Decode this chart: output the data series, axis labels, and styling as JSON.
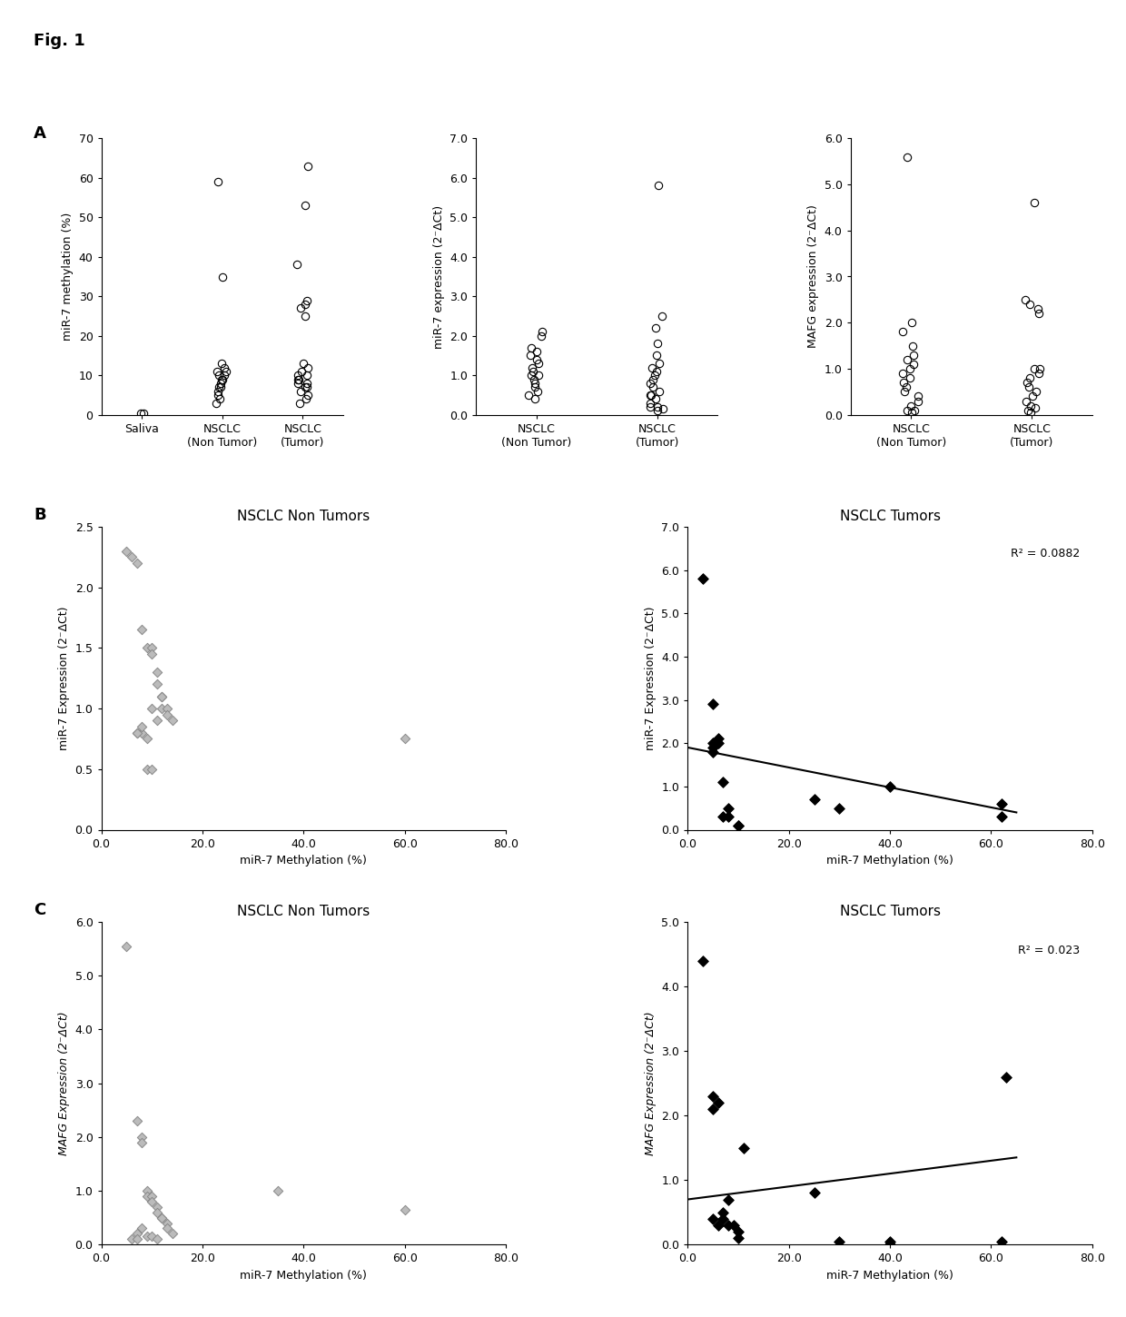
{
  "fig_label": "Fig. 1",
  "panel_A": {
    "plot1": {
      "ylabel": "miR-7 methylation (%)",
      "ylim": [
        0,
        70
      ],
      "yticks": [
        0,
        10,
        20,
        30,
        40,
        50,
        60,
        70
      ],
      "yticklabels": [
        "0",
        "10",
        "20",
        "30",
        "40",
        "50",
        "60",
        "70"
      ],
      "categories": [
        "Saliva",
        "NSCLC\n(Non Tumor)",
        "NSCLC\n(Tumor)"
      ],
      "data_saliva": [
        0.3,
        0.5
      ],
      "data_nontumor": [
        3,
        4,
        5,
        6,
        7,
        7,
        8,
        9,
        9,
        10,
        10,
        11,
        11,
        12,
        13,
        35,
        59
      ],
      "data_tumor": [
        3,
        4,
        5,
        6,
        7,
        7,
        8,
        8,
        9,
        9,
        10,
        10,
        11,
        12,
        13,
        25,
        27,
        28,
        29,
        38,
        53,
        63
      ]
    },
    "plot2": {
      "ylabel": "miR-7 expression (2⁻ΔCt)",
      "ylim": [
        0,
        7.0
      ],
      "yticks": [
        0.0,
        1.0,
        2.0,
        3.0,
        4.0,
        5.0,
        6.0,
        7.0
      ],
      "yticklabels": [
        "0.0",
        "1.0",
        "2.0",
        "3.0",
        "4.0",
        "5.0",
        "6.0",
        "7.0"
      ],
      "categories": [
        "NSCLC\n(Non Tumor)",
        "NSCLC\n(Tumor)"
      ],
      "data_nontumor": [
        0.4,
        0.5,
        0.6,
        0.7,
        0.8,
        0.9,
        1.0,
        1.0,
        1.1,
        1.2,
        1.3,
        1.4,
        1.5,
        1.6,
        1.7,
        2.0,
        2.1
      ],
      "data_tumor": [
        0.1,
        0.15,
        0.2,
        0.2,
        0.3,
        0.4,
        0.5,
        0.5,
        0.6,
        0.7,
        0.8,
        0.9,
        1.0,
        1.1,
        1.2,
        1.3,
        1.5,
        1.8,
        2.2,
        2.5,
        5.8
      ]
    },
    "plot3": {
      "ylabel": "MAFG expression (2⁻ΔCt)",
      "ylim": [
        0,
        6.0
      ],
      "yticks": [
        0.0,
        1.0,
        2.0,
        3.0,
        4.0,
        5.0,
        6.0
      ],
      "yticklabels": [
        "0.0",
        "1.0",
        "2.0",
        "3.0",
        "4.0",
        "5.0",
        "6.0"
      ],
      "categories": [
        "NSCLC\n(Non Tumor)",
        "NSCLC\n(Tumor)"
      ],
      "data_nontumor": [
        0.05,
        0.1,
        0.1,
        0.2,
        0.3,
        0.4,
        0.5,
        0.6,
        0.7,
        0.8,
        0.9,
        1.0,
        1.1,
        1.2,
        1.3,
        1.5,
        1.8,
        2.0,
        5.6
      ],
      "data_tumor": [
        0.05,
        0.1,
        0.15,
        0.2,
        0.3,
        0.4,
        0.5,
        0.6,
        0.7,
        0.8,
        0.9,
        1.0,
        1.0,
        2.2,
        2.3,
        2.4,
        2.5,
        4.6
      ]
    }
  },
  "panel_B": {
    "left": {
      "title": "NSCLC Non Tumors",
      "xlabel": "miR-7 Methylation (%)",
      "ylabel": "miR-7 Expression (2⁻ΔCt)",
      "xlim": [
        0,
        80
      ],
      "ylim": [
        0,
        2.5
      ],
      "xticks": [
        0.0,
        20.0,
        40.0,
        60.0,
        80.0
      ],
      "xticklabels": [
        "0.0",
        "20.0",
        "40.0",
        "60.0",
        "80.0"
      ],
      "yticks": [
        0.0,
        0.5,
        1.0,
        1.5,
        2.0,
        2.5
      ],
      "yticklabels": [
        "0.0",
        "0.5",
        "1.0",
        "1.5",
        "2.0",
        "2.5"
      ],
      "x": [
        5,
        6,
        7,
        8,
        9,
        10,
        10,
        11,
        11,
        12,
        12,
        13,
        13,
        14,
        7,
        8,
        9,
        10,
        11,
        12,
        7,
        8,
        9,
        60,
        10
      ],
      "y": [
        2.3,
        2.25,
        2.2,
        1.65,
        1.5,
        1.5,
        1.45,
        1.3,
        1.2,
        1.1,
        1.0,
        1.0,
        0.95,
        0.9,
        0.8,
        0.8,
        0.75,
        1.0,
        0.9,
        1.1,
        0.8,
        0.85,
        0.5,
        0.75,
        0.5
      ],
      "has_line": false
    },
    "right": {
      "title": "NSCLC Tumors",
      "xlabel": "miR-7 Methylation (%)",
      "ylabel": "miR-7 Expression (2⁻ΔCt)",
      "xlim": [
        0,
        80
      ],
      "ylim": [
        0,
        7.0
      ],
      "xticks": [
        0.0,
        20.0,
        40.0,
        60.0,
        80.0
      ],
      "xticklabels": [
        "0.0",
        "20.0",
        "40.0",
        "60.0",
        "80.0"
      ],
      "yticks": [
        0.0,
        1.0,
        2.0,
        3.0,
        4.0,
        5.0,
        6.0,
        7.0
      ],
      "yticklabels": [
        "0.0",
        "1.0",
        "2.0",
        "3.0",
        "4.0",
        "5.0",
        "6.0",
        "7.0"
      ],
      "x": [
        3,
        5,
        5,
        5,
        6,
        7,
        7,
        8,
        8,
        10,
        10,
        25,
        30,
        40,
        62,
        62,
        5,
        6
      ],
      "y": [
        5.8,
        2.9,
        2.0,
        1.8,
        2.0,
        1.1,
        0.3,
        0.5,
        0.3,
        0.1,
        0.1,
        0.7,
        0.5,
        1.0,
        0.6,
        0.3,
        1.9,
        2.1
      ],
      "has_line": true,
      "r2": "R² = 0.0882",
      "line_x": [
        0,
        65
      ],
      "line_y": [
        1.9,
        0.4
      ]
    }
  },
  "panel_C": {
    "left": {
      "title": "NSCLC Non Tumors",
      "xlabel": "miR-7 Methylation (%)",
      "ylabel": "MAFG Expression (2⁻ΔCt)",
      "xlim": [
        0,
        80
      ],
      "ylim": [
        0,
        6.0
      ],
      "xticks": [
        0.0,
        20.0,
        40.0,
        60.0,
        80.0
      ],
      "xticklabels": [
        "0.0",
        "20.0",
        "40.0",
        "60.0",
        "80.0"
      ],
      "yticks": [
        0.0,
        1.0,
        2.0,
        3.0,
        4.0,
        5.0,
        6.0
      ],
      "yticklabels": [
        "0.0",
        "1.0",
        "2.0",
        "3.0",
        "4.0",
        "5.0",
        "6.0"
      ],
      "x": [
        5,
        7,
        8,
        8,
        9,
        9,
        10,
        10,
        11,
        11,
        12,
        12,
        13,
        13,
        14,
        35,
        60,
        7,
        8,
        9,
        10,
        11,
        6,
        7
      ],
      "y": [
        5.55,
        2.3,
        2.0,
        1.9,
        1.0,
        0.9,
        0.9,
        0.8,
        0.7,
        0.6,
        0.5,
        0.5,
        0.4,
        0.3,
        0.2,
        1.0,
        0.65,
        0.2,
        0.3,
        0.15,
        0.15,
        0.1,
        0.1,
        0.1
      ],
      "has_line": false
    },
    "right": {
      "title": "NSCLC Tumors",
      "xlabel": "miR-7 Methylation (%)",
      "ylabel": "MAFG Expression (2⁻ΔCt)",
      "xlim": [
        0,
        80
      ],
      "ylim": [
        0,
        5.0
      ],
      "xticks": [
        0.0,
        20.0,
        40.0,
        60.0,
        80.0
      ],
      "xticklabels": [
        "0.0",
        "20.0",
        "40.0",
        "60.0",
        "80.0"
      ],
      "yticks": [
        0.0,
        1.0,
        2.0,
        3.0,
        4.0,
        5.0
      ],
      "yticklabels": [
        "0.0",
        "1.0",
        "2.0",
        "3.0",
        "4.0",
        "5.0"
      ],
      "x": [
        3,
        5,
        5,
        6,
        7,
        7,
        8,
        8,
        9,
        10,
        10,
        11,
        25,
        30,
        40,
        40,
        62,
        63,
        5,
        6
      ],
      "y": [
        4.4,
        2.3,
        2.1,
        2.2,
        0.5,
        0.4,
        0.7,
        0.3,
        0.3,
        0.2,
        0.1,
        1.5,
        0.8,
        0.05,
        0.05,
        0.0,
        0.05,
        2.6,
        0.4,
        0.3
      ],
      "has_line": true,
      "r2": "R² = 0.023",
      "line_x": [
        0,
        65
      ],
      "line_y": [
        0.7,
        1.35
      ]
    }
  }
}
